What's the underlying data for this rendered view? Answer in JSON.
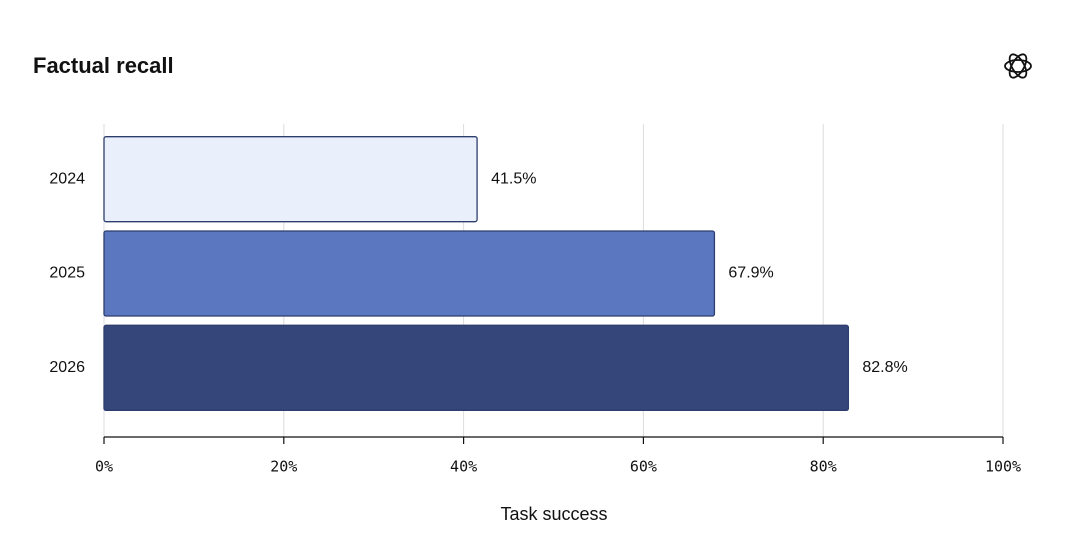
{
  "chart_data": {
    "type": "bar",
    "orientation": "horizontal",
    "title": "Factual recall",
    "categories": [
      "2024",
      "2025",
      "2026"
    ],
    "values": [
      41.5,
      67.9,
      82.8
    ],
    "value_labels": [
      "41.5%",
      "67.9%",
      "82.8%"
    ],
    "colors": [
      "#e9f0fb",
      "#5b77c0",
      "#35467a"
    ],
    "xlabel": "Task success",
    "xlim": [
      0,
      100
    ],
    "xticks": [
      {
        "value": 0,
        "label": "0%"
      },
      {
        "value": 20,
        "label": "20%"
      },
      {
        "value": 40,
        "label": "40%"
      },
      {
        "value": 60,
        "label": "60%"
      },
      {
        "value": 80,
        "label": "80%"
      },
      {
        "value": 100,
        "label": "100%"
      }
    ],
    "grid": true
  }
}
